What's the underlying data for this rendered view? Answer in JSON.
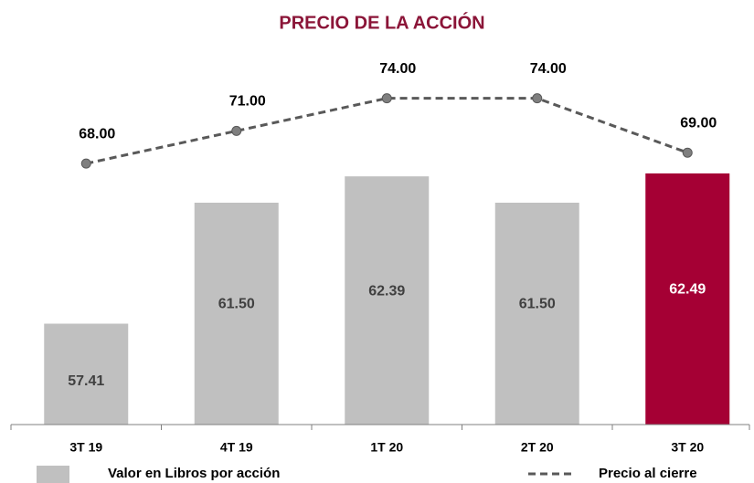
{
  "chart_data": {
    "type": "bar",
    "title": "PRECIO DE LA ACCIÓN",
    "categories": [
      "3T 19",
      "4T 19",
      "1T 20",
      "2T 20",
      "3T 20"
    ],
    "ylim": [
      54,
      66.5
    ],
    "y2lim": [
      44,
      78
    ],
    "series": [
      {
        "name": "Valor en Libros por acción",
        "type": "bar",
        "color": "#c0c0c0",
        "colors": [
          "#c0c0c0",
          "#c0c0c0",
          "#c0c0c0",
          "#c0c0c0",
          "#a50034"
        ],
        "values": [
          57.41,
          61.5,
          62.39,
          61.5,
          62.49
        ],
        "value_labels": [
          "57.41",
          "61.50",
          "62.39",
          "61.50",
          "62.49"
        ]
      },
      {
        "name": "Precio al cierre",
        "type": "line",
        "axis": "y2",
        "color": "#595959",
        "values": [
          68,
          71,
          74,
          74,
          69
        ],
        "value_labels": [
          "68.00",
          "71.00",
          "74.00",
          "74.00",
          "69.00"
        ]
      }
    ]
  }
}
